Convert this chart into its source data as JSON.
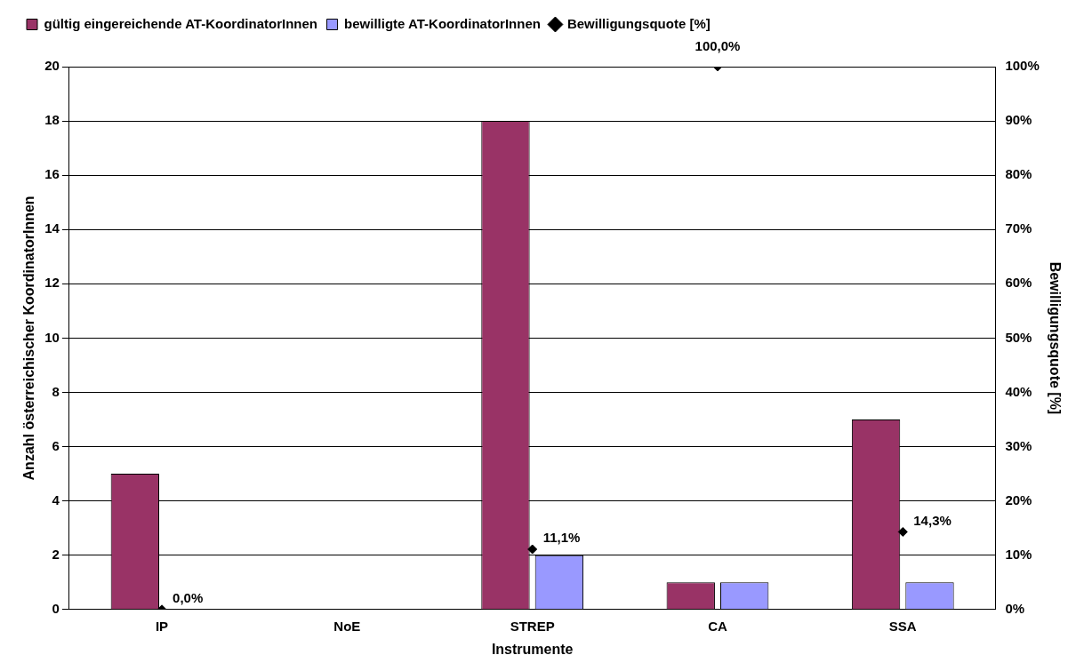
{
  "chart_data": {
    "type": "bar",
    "xlabel": "Instrumente",
    "ylabel": "Anzahl österreichischer KoordinatorInnen",
    "y2label": "Bewilligungsquote [%]",
    "categories": [
      "IP",
      "NoE",
      "STREP",
      "CA",
      "SSA"
    ],
    "series": [
      {
        "name": "gültig eingereichende AT-KoordinatorInnen",
        "color": "#993366",
        "values": [
          5,
          0,
          18,
          1,
          7
        ]
      },
      {
        "name": "bewilligte AT-KoordinatorInnen",
        "color": "#9999ff",
        "values": [
          0,
          0,
          2,
          1,
          1
        ]
      },
      {
        "name": "Bewilligungsquote [%]",
        "type": "scatter",
        "axis": "y2",
        "color": "#000000",
        "marker": "diamond",
        "x": [
          "IP",
          "NoE",
          "STREP",
          "CA",
          "SSA"
        ],
        "values": [
          0,
          null,
          11.1,
          100,
          14.3
        ],
        "value_labels": [
          "0,0%",
          null,
          "11,1%",
          "100,0%",
          "14,3%"
        ]
      }
    ],
    "ylim": [
      0,
      20
    ],
    "yticks": [
      0,
      2,
      4,
      6,
      8,
      10,
      12,
      14,
      16,
      18,
      20
    ],
    "y2lim": [
      0,
      100
    ],
    "y2ticks": [
      {
        "value": 0,
        "label": "0%"
      },
      {
        "value": 10,
        "label": "10%"
      },
      {
        "value": 20,
        "label": "20%"
      },
      {
        "value": 30,
        "label": "30%"
      },
      {
        "value": 40,
        "label": "40%"
      },
      {
        "value": 50,
        "label": "50%"
      },
      {
        "value": 60,
        "label": "60%"
      },
      {
        "value": 70,
        "label": "70%"
      },
      {
        "value": 80,
        "label": "80%"
      },
      {
        "value": 90,
        "label": "90%"
      },
      {
        "value": 100,
        "label": "100%"
      }
    ],
    "grid": "y",
    "legend": "top left"
  }
}
